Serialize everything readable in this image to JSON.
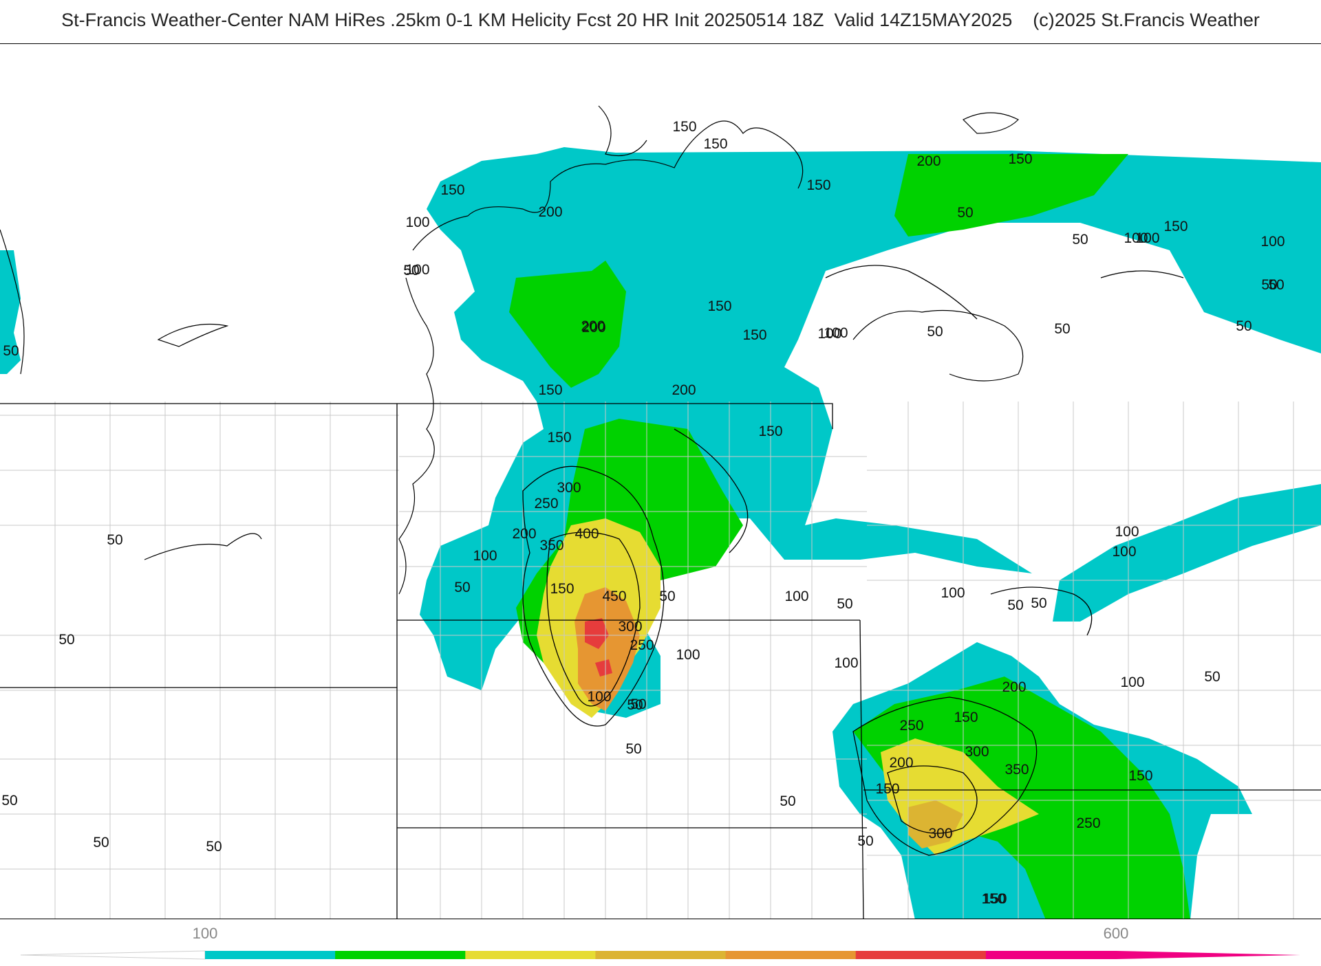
{
  "title": "St-Francis Weather-Center NAM HiRes .25km 0-1 KM Helicity Fcst 20 HR Init 20250514 18Z  Valid 14Z15MAY2025    (c)2025 St.Francis Weather",
  "colors": {
    "band_50_100": "#ffffff",
    "band_100_150": "#00c8c8",
    "band_150_200": "#00c8c8",
    "band_200_250": "#00d200",
    "band_300_350": "#e6dc32",
    "band_350_400": "#dcb432",
    "band_400_450": "#e69632",
    "band_450_plus": "#e63c3c",
    "band_600_plus": "#f00082",
    "contour_line": "#000000",
    "state_border": "#000000",
    "county_border": "#c8c8c8"
  },
  "contour_labels": [
    "150",
    "150",
    "150",
    "200",
    "150",
    "50",
    "150",
    "100",
    "100",
    "50",
    "200",
    "150",
    "100",
    "50",
    "150",
    "50",
    "100",
    "100",
    "50",
    "150",
    "200",
    "150",
    "100",
    "50",
    "50",
    "100",
    "50",
    "50",
    "200",
    "200",
    "150",
    "150",
    "300",
    "250",
    "200",
    "350",
    "400",
    "100",
    "150",
    "450",
    "50",
    "100",
    "50",
    "50",
    "300",
    "100",
    "250",
    "100",
    "50",
    "50",
    "100",
    "100",
    "100",
    "50",
    "100",
    "50",
    "50",
    "200",
    "150",
    "100",
    "250",
    "300",
    "350",
    "200",
    "150",
    "150",
    "300",
    "250",
    "150",
    "50",
    "50",
    "50",
    "50",
    "50",
    "50",
    "50",
    "50",
    "50",
    "150"
  ],
  "colorbar": {
    "tick_labels": [
      "100",
      "600"
    ],
    "segments": [
      "#00c8c8",
      "#00d200",
      "#e6dc32",
      "#dcb432",
      "#e69632",
      "#e63c3c",
      "#f00082"
    ]
  }
}
